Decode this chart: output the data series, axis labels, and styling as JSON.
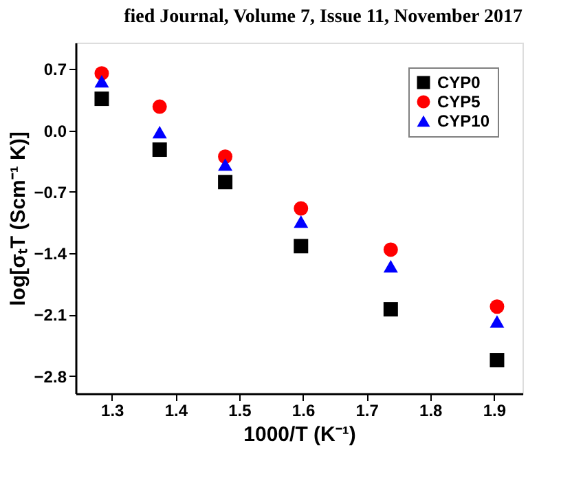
{
  "chart_data": {
    "type": "scatter",
    "annotations": [
      "fied Journal, Volume 7, Issue 11, November 2017"
    ],
    "xlabel": "1000/T (K⁻¹)",
    "ylabel": "log[σₜT (Scm⁻¹ K)]",
    "x": [
      1.284,
      1.375,
      1.478,
      1.597,
      1.738,
      1.905
    ],
    "series": [
      {
        "name": "CYP0",
        "color": "#000000",
        "marker": "square",
        "values": [
          0.36,
          -0.22,
          -0.59,
          -1.32,
          -2.04,
          -2.62
        ]
      },
      {
        "name": "CYP5",
        "color": "#ff0000",
        "marker": "circle",
        "values": [
          0.65,
          0.27,
          -0.3,
          -0.89,
          -1.36,
          -2.01
        ]
      },
      {
        "name": "CYP10",
        "color": "#0000ff",
        "marker": "triangle",
        "values": [
          0.56,
          -0.02,
          -0.39,
          -1.04,
          -1.55,
          -2.18
        ]
      }
    ],
    "xlim": [
      1.243,
      1.945
    ],
    "xticks": [
      1.3,
      1.4,
      1.5,
      1.6,
      1.7,
      1.8,
      1.9
    ],
    "ylim": [
      -3.0,
      1.0
    ],
    "yticks": [
      0.7,
      {
        "value": 0,
        "label": "0.0"
      },
      -0.7,
      -1.4,
      -2.1,
      -2.8
    ],
    "legend": "top right",
    "grid": false
  }
}
